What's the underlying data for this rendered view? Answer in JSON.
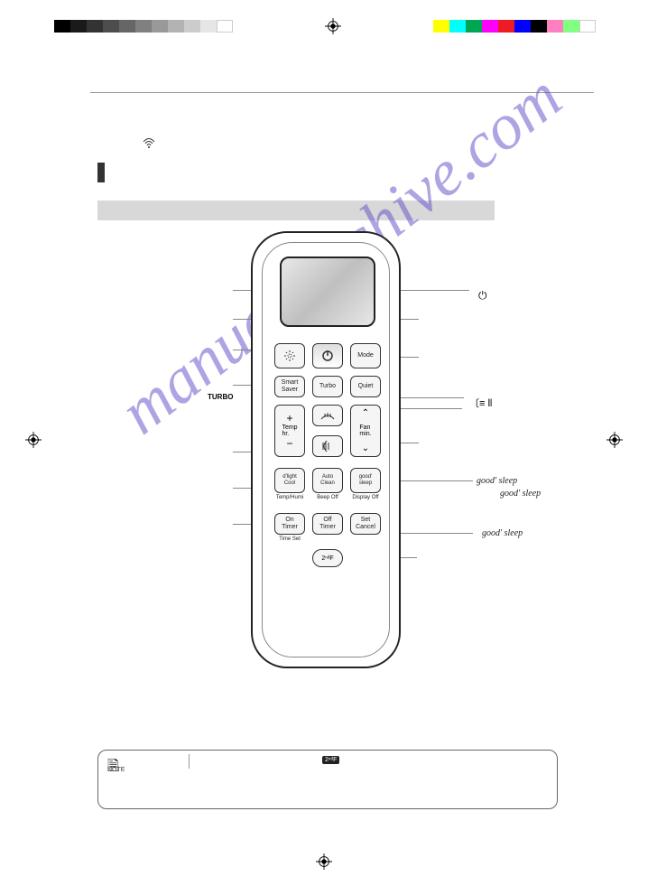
{
  "print": {
    "grays": [
      "#000000",
      "#1a1a1a",
      "#333333",
      "#4d4d4d",
      "#666666",
      "#808080",
      "#999999",
      "#b3b3b3",
      "#cccccc",
      "#e6e6e6",
      "#ffffff"
    ],
    "colors": [
      "#ffff00",
      "#00ffff",
      "#00a651",
      "#ff00ff",
      "#ed1c24",
      "#0000ff",
      "#000000",
      "#ff80c0",
      "#80ff80",
      "#ffffff"
    ]
  },
  "watermark": "manualsarchive.com",
  "remote": {
    "row1": {
      "mode": "Mode"
    },
    "row2": {
      "smart": "Smart\nSaver",
      "turbo": "Turbo",
      "quiet": "Quiet"
    },
    "temp": {
      "plus": "+",
      "label": "Temp\nhr.",
      "minus": "−"
    },
    "fan": {
      "up": "⌃",
      "label": "Fan\nmin.",
      "down": "⌄"
    },
    "row4": {
      "dlight": "d'light\nCool",
      "dlight_sub": "Temp/Humi",
      "auto": "Auto\nClean",
      "auto_sub": "Beep Off",
      "good": "good'\nsleep",
      "good_sub": "Display Off"
    },
    "row5": {
      "on": "On\nTimer",
      "on_sub": "Time Set",
      "off": "Off\nTimer",
      "set": "Set\nCancel"
    },
    "second": "2ⁿᵈF"
  },
  "labels": {
    "turbo_side": "TURBO",
    "power_symbol": "⏻",
    "swing_symbol": "〔≡ ⦀",
    "goodsleep": "good' sleep"
  },
  "note": {
    "icon": "🗎",
    "label": "NOTE",
    "badge": "2ⁿᵈF"
  }
}
